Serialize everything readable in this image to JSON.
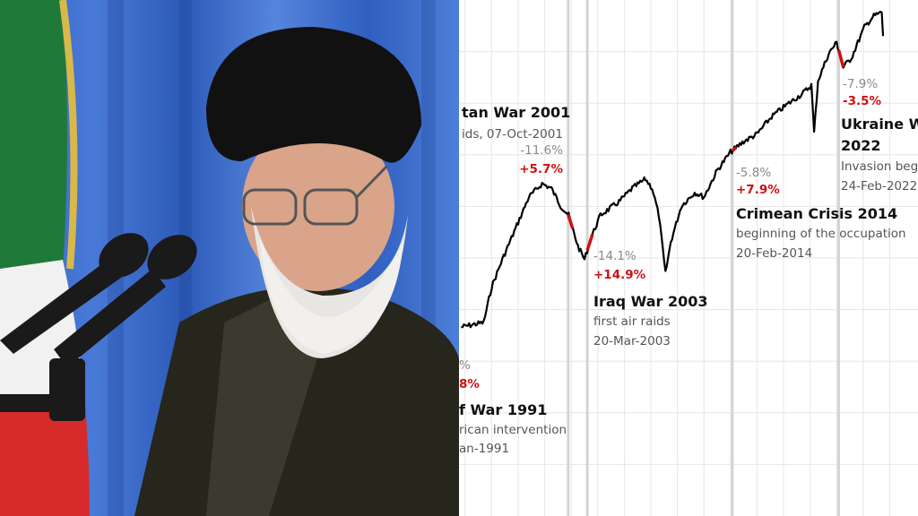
{
  "colors": {
    "line": "#000000",
    "event_segment": "#cc1111",
    "drop_text": "#8a8a8a",
    "rise_text": "#cc1111",
    "grid": "#e6e6e6",
    "event_line": "#d4d4d4"
  },
  "photo": {
    "description_icon": "portrait-photo"
  },
  "chart_data": {
    "type": "line",
    "title": "",
    "xlabel": "",
    "ylabel": "",
    "grid": true,
    "note": "y values are relative estimates; no y axis printed",
    "x": [
      1993.7,
      1994.8,
      1995.4,
      1996.0,
      1996.8,
      1997.8,
      1998.8,
      1999.8,
      2000.5,
      2001.2,
      2001.8,
      2002.5,
      2003.0,
      2003.5,
      2004.2,
      2005.6,
      2006.6,
      2007.6,
      2008.1,
      2008.6,
      2009.1,
      2009.5,
      2010.3,
      2011.3,
      2012.0,
      2013.0,
      2014.0,
      2015.0,
      2016.0,
      2017.1,
      2018.4,
      2019.4,
      2020.1,
      2020.3,
      2020.6,
      2021.4,
      2022.0,
      2022.5,
      2023.1,
      2024.1,
      2024.8,
      2025.4,
      2025.5
    ],
    "y": [
      36.6,
      37.2,
      37.5,
      44.4,
      49.7,
      55.7,
      61.8,
      64.4,
      63.5,
      60.1,
      58.3,
      52.3,
      49.7,
      54,
      58.3,
      60.9,
      63.5,
      65.3,
      63.5,
      58.3,
      47,
      53.1,
      60.1,
      62.7,
      61.8,
      67,
      70.5,
      72.6,
      74,
      77.4,
      80,
      81.8,
      83.5,
      74.3,
      84.4,
      89.6,
      91.8,
      87,
      88.7,
      94.8,
      96.9,
      97.6,
      93
    ],
    "event_years": [
      2001.77,
      2003.21,
      2014.14,
      2022.15
    ],
    "events": [
      {
        "title": "f War 1991",
        "line1": "rican intervention",
        "line2": "an-1991",
        "drop": "%",
        "rise": "8%"
      },
      {
        "title": "tan War 2001",
        "line1": "ids, 07-Oct-2001",
        "drop": "-11.6%",
        "rise": "+5.7%",
        "segment": [
          2001.77,
          2002.1
        ]
      },
      {
        "title": "Iraq War 2003",
        "line1": "first air raids",
        "line2": "20-Mar-2003",
        "drop": "-14.1%",
        "rise": "+14.9%",
        "segment": [
          2003.21,
          2003.6
        ]
      },
      {
        "title": "Crimean Crisis 2014",
        "line1": "beginning of the occupation",
        "line2": "20-Feb-2014",
        "drop": "-5.8%",
        "rise": "+7.9%",
        "segment": [
          2014.14,
          2014.45
        ]
      },
      {
        "title": "Ukraine W",
        "title2": "2022",
        "line1": "Invasion beg",
        "line2": "24-Feb-2022",
        "drop": "-7.9%",
        "rise": "-3.5%",
        "segment": [
          2022.15,
          2022.5
        ]
      }
    ]
  }
}
